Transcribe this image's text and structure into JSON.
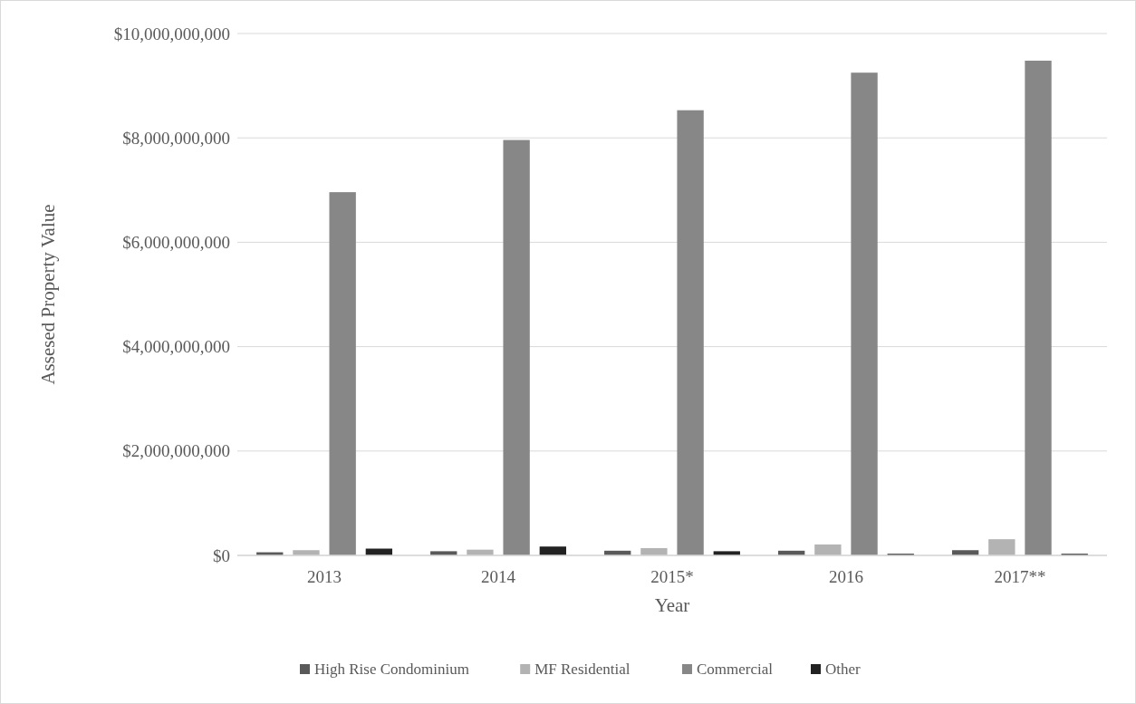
{
  "chart_data": {
    "type": "bar",
    "xlabel": "Year",
    "ylabel": "Assesed Property Value",
    "categories": [
      "2013",
      "2014",
      "2015*",
      "2016",
      "2017**"
    ],
    "series": [
      {
        "name": "High Rise Condominium",
        "color": "#595959",
        "values": [
          60000000,
          80000000,
          90000000,
          90000000,
          100000000
        ]
      },
      {
        "name": "MF Residential",
        "color": "#b3b3b3",
        "values": [
          100000000,
          110000000,
          140000000,
          210000000,
          310000000
        ]
      },
      {
        "name": "Commercial",
        "color": "#878787",
        "values": [
          6960000000,
          7960000000,
          8530000000,
          9250000000,
          9480000000
        ]
      },
      {
        "name": "Other",
        "color": "#222222",
        "values": [
          130000000,
          170000000,
          80000000,
          30000000,
          30000000
        ]
      }
    ],
    "ylim": [
      0,
      10000000000
    ],
    "yticks": [
      {
        "value": 0,
        "label": "$0"
      },
      {
        "value": 2000000000,
        "label": "$2,000,000,000"
      },
      {
        "value": 4000000000,
        "label": "$4,000,000,000"
      },
      {
        "value": 6000000000,
        "label": "$6,000,000,000"
      },
      {
        "value": 8000000000,
        "label": "$8,000,000,000"
      },
      {
        "value": 10000000000,
        "label": "$10,000,000,000"
      }
    ],
    "grid": "y",
    "legend": "bottom"
  }
}
